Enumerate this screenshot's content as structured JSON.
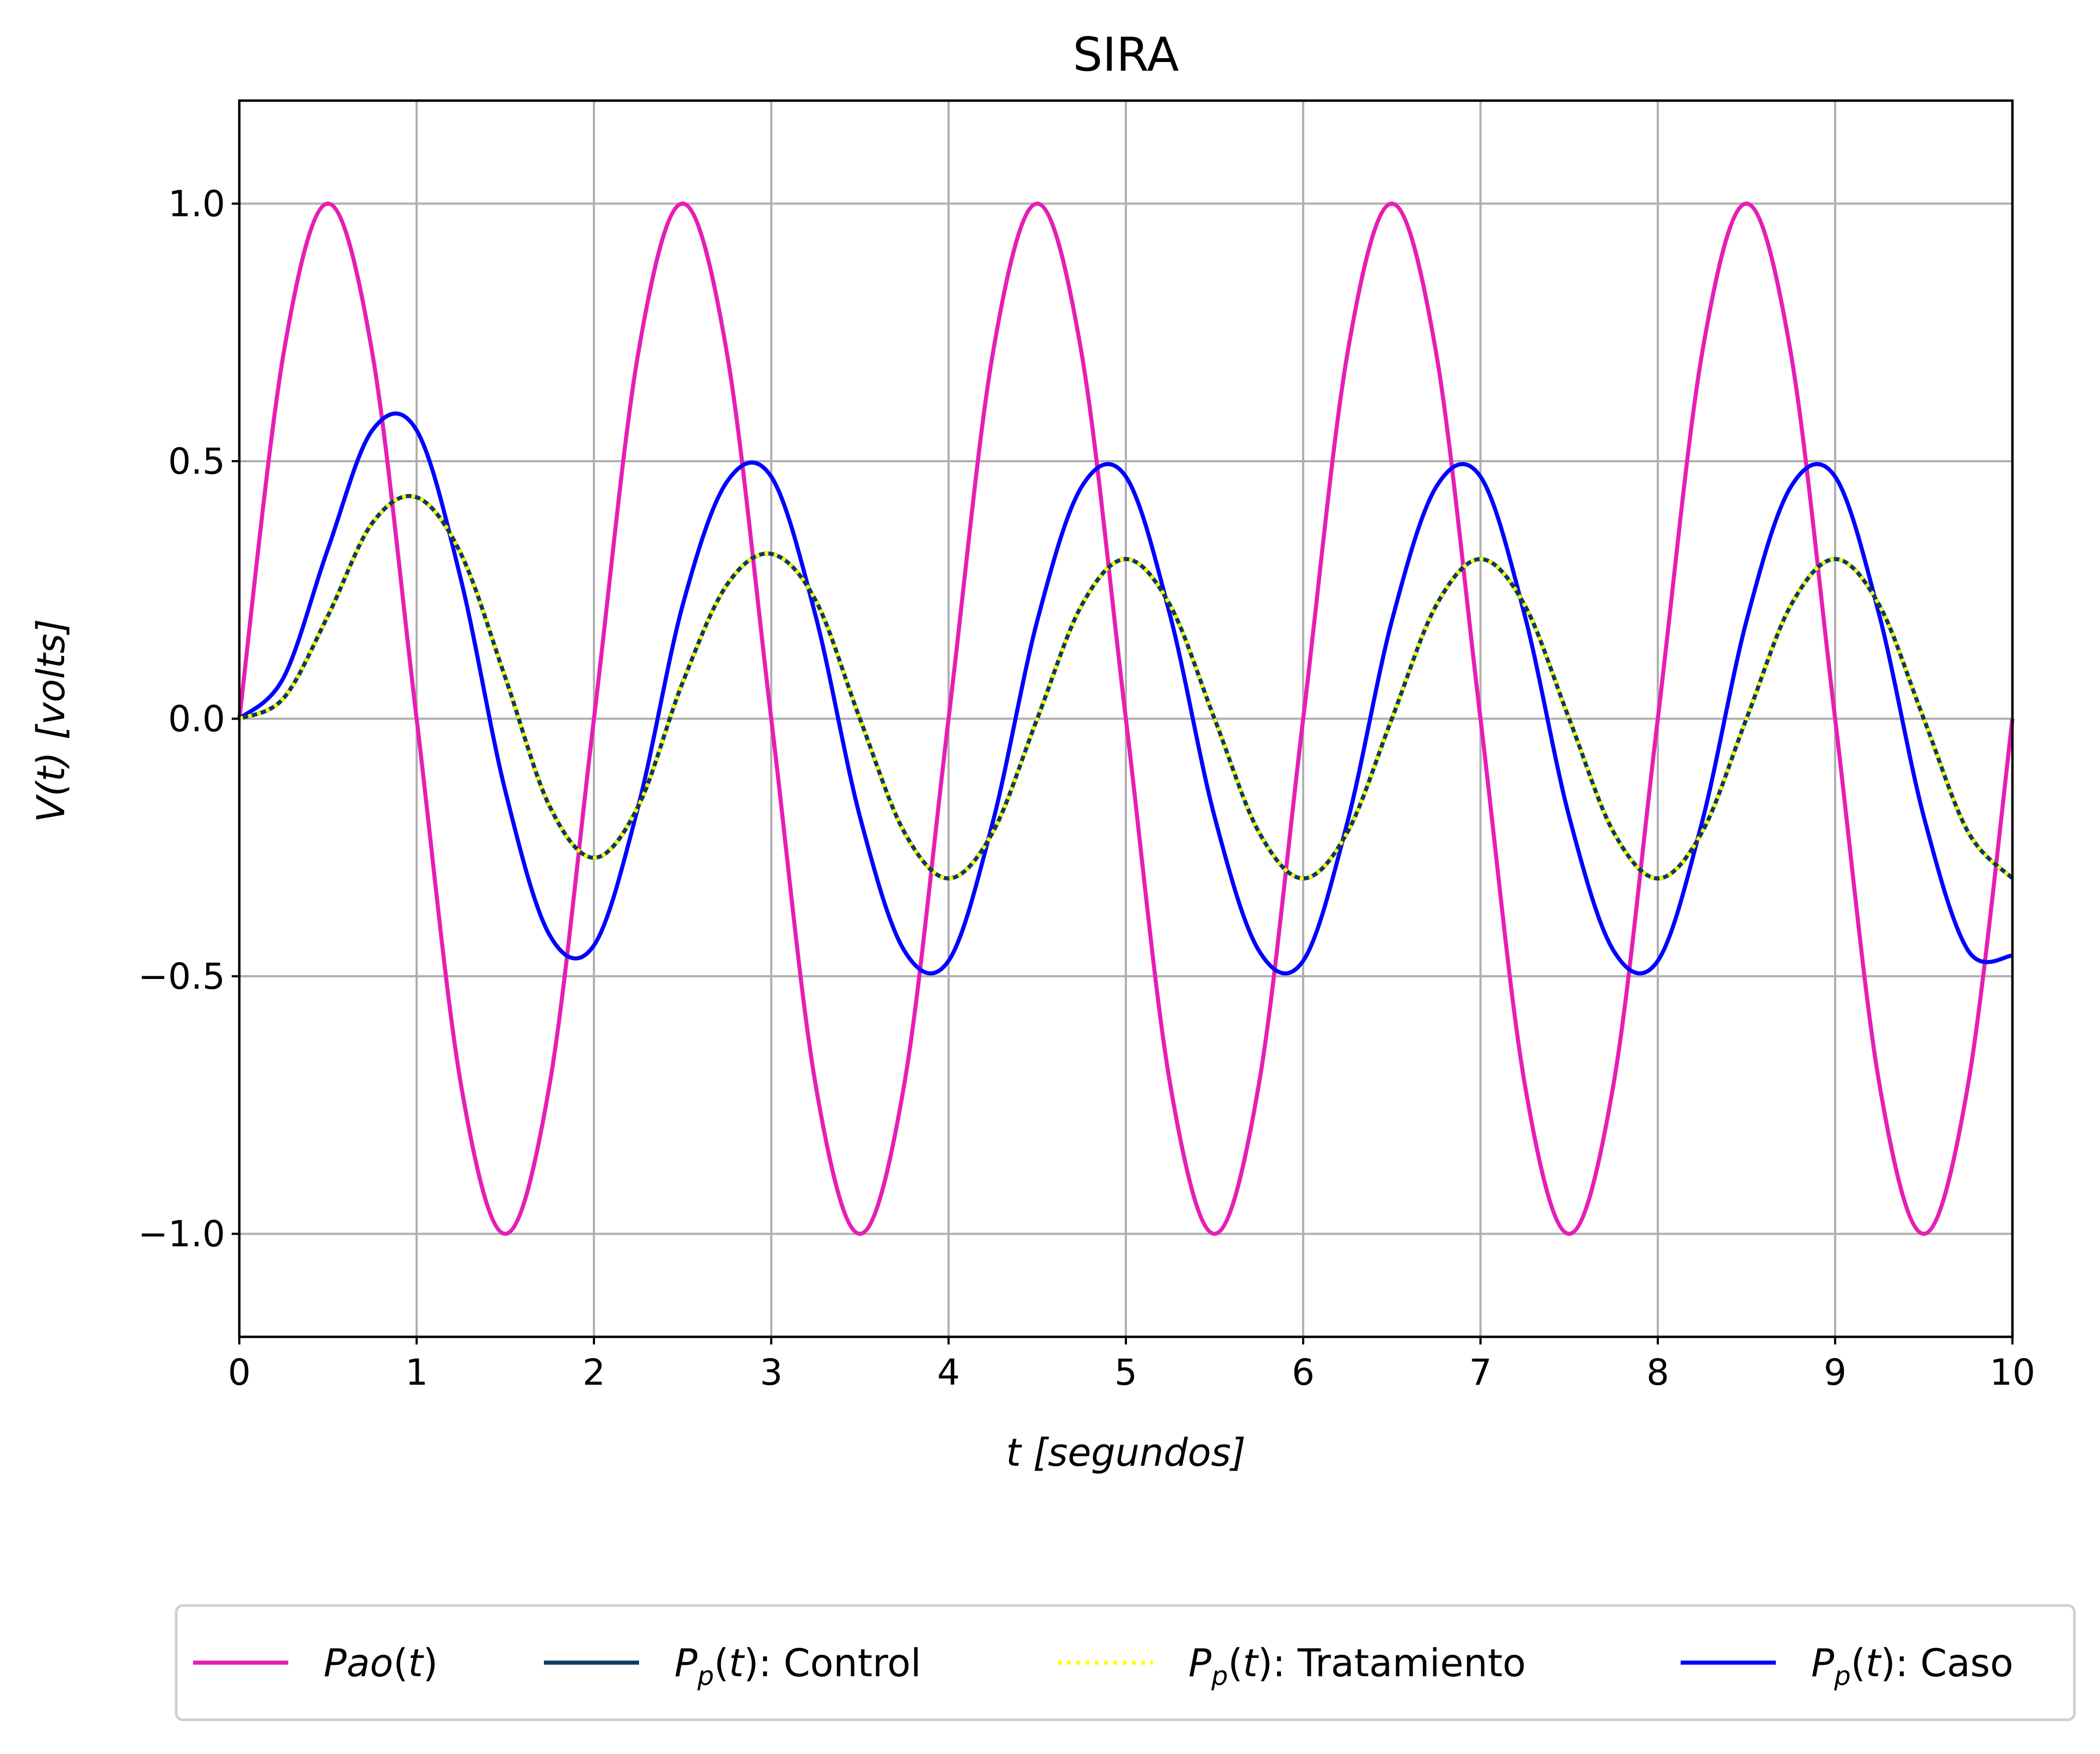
{
  "chart_data": {
    "type": "line",
    "title": "SIRA",
    "xlabel": "t [segundos]",
    "ylabel": "V(t) [volts]",
    "xlim": [
      0,
      10
    ],
    "ylim": [
      -1.2,
      1.2
    ],
    "xticks": [
      "0",
      "1",
      "2",
      "3",
      "4",
      "5",
      "6",
      "7",
      "8",
      "9",
      "10"
    ],
    "yticks": [
      "−1.0",
      "−0.5",
      "0.0",
      "0.5",
      "1.0"
    ],
    "grid": true,
    "legend_position": "bottom",
    "series": [
      {
        "name": "Pao(t)",
        "color": "#e61eb4",
        "style": "solid",
        "x": [
          0,
          0.25,
          0.5,
          0.75,
          1,
          1.25,
          1.5,
          1.75,
          2,
          2.25,
          2.5,
          2.75,
          3,
          3.25,
          3.5,
          3.75,
          4,
          4.25,
          4.5,
          4.75,
          5,
          5.25,
          5.5,
          5.75,
          6,
          6.25,
          6.5,
          6.75,
          7,
          7.25,
          7.5,
          7.75,
          8,
          8.25,
          8.5,
          8.75,
          9,
          9.25,
          9.5,
          9.75,
          10
        ],
        "y": [
          0,
          0.71,
          1.0,
          0.71,
          0,
          -0.71,
          -1.0,
          -0.71,
          0,
          0.71,
          1.0,
          0.71,
          0,
          -0.71,
          -1.0,
          -0.71,
          0,
          0.71,
          1.0,
          0.71,
          0,
          -0.71,
          -1.0,
          -0.71,
          0,
          0.71,
          1.0,
          0.71,
          0,
          -0.71,
          -1.0,
          -0.71,
          0,
          0.71,
          1.0,
          0.71,
          0,
          -0.71,
          -1.0,
          -0.71,
          0
        ]
      },
      {
        "name": "Pp(t): Control",
        "color": "#0b3b61",
        "style": "solid",
        "x": [
          0,
          0.25,
          0.5,
          0.75,
          1,
          1.25,
          1.5,
          1.75,
          2,
          2.25,
          2.5,
          2.75,
          3,
          3.25,
          3.5,
          3.75,
          4,
          4.25,
          4.5,
          4.75,
          5,
          5.25,
          5.5,
          5.75,
          6,
          6.25,
          6.5,
          6.75,
          7,
          7.25,
          7.5,
          7.75,
          8,
          8.25,
          8.5,
          8.75,
          9,
          9.25,
          9.5,
          9.75,
          10
        ],
        "y": [
          0,
          0.04,
          0.2,
          0.38,
          0.43,
          0.32,
          0.08,
          -0.17,
          -0.27,
          -0.17,
          0.07,
          0.26,
          0.32,
          0.23,
          0.0,
          -0.22,
          -0.31,
          -0.22,
          0.0,
          0.22,
          0.31,
          0.22,
          0.0,
          -0.22,
          -0.31,
          -0.22,
          0.0,
          0.22,
          0.31,
          0.22,
          0.0,
          -0.22,
          -0.31,
          -0.22,
          0.0,
          0.22,
          0.31,
          0.22,
          0.0,
          -0.22,
          -0.31
        ]
      },
      {
        "name": "Pp(t): Tratamiento",
        "color": "#ffff00",
        "style": "dotted",
        "x": [
          0,
          0.25,
          0.5,
          0.75,
          1,
          1.25,
          1.5,
          1.75,
          2,
          2.25,
          2.5,
          2.75,
          3,
          3.25,
          3.5,
          3.75,
          4,
          4.25,
          4.5,
          4.75,
          5,
          5.25,
          5.5,
          5.75,
          6,
          6.25,
          6.5,
          6.75,
          7,
          7.25,
          7.5,
          7.75,
          8,
          8.25,
          8.5,
          8.75,
          9,
          9.25,
          9.5,
          9.75,
          10
        ],
        "y": [
          0,
          0.04,
          0.2,
          0.38,
          0.43,
          0.32,
          0.08,
          -0.17,
          -0.27,
          -0.17,
          0.07,
          0.26,
          0.32,
          0.23,
          0.0,
          -0.22,
          -0.31,
          -0.22,
          0.0,
          0.22,
          0.31,
          0.22,
          0.0,
          -0.22,
          -0.31,
          -0.22,
          0.0,
          0.22,
          0.31,
          0.22,
          0.0,
          -0.22,
          -0.31,
          -0.22,
          0.0,
          0.22,
          0.31,
          0.22,
          0.0,
          -0.22,
          -0.31
        ]
      },
      {
        "name": "Pp(t): Caso",
        "color": "#0000ff",
        "style": "solid",
        "x": [
          0,
          0.25,
          0.5,
          0.75,
          1,
          1.25,
          1.5,
          1.75,
          2,
          2.25,
          2.5,
          2.75,
          3,
          3.25,
          3.5,
          3.75,
          4,
          4.25,
          4.5,
          4.75,
          5,
          5.25,
          5.5,
          5.75,
          6,
          6.25,
          6.5,
          6.75,
          7,
          7.25,
          7.5,
          7.75,
          8,
          8.25,
          8.5,
          8.75,
          9,
          9.25,
          9.5,
          9.75,
          10
        ],
        "y": [
          0,
          0.08,
          0.33,
          0.56,
          0.56,
          0.27,
          -0.14,
          -0.42,
          -0.44,
          -0.17,
          0.22,
          0.46,
          0.47,
          0.2,
          -0.19,
          -0.45,
          -0.47,
          -0.2,
          0.19,
          0.45,
          0.47,
          0.2,
          -0.19,
          -0.45,
          -0.47,
          -0.2,
          0.19,
          0.45,
          0.47,
          0.2,
          -0.19,
          -0.45,
          -0.47,
          -0.2,
          0.19,
          0.45,
          0.47,
          0.2,
          -0.19,
          -0.45,
          -0.46
        ]
      }
    ]
  }
}
